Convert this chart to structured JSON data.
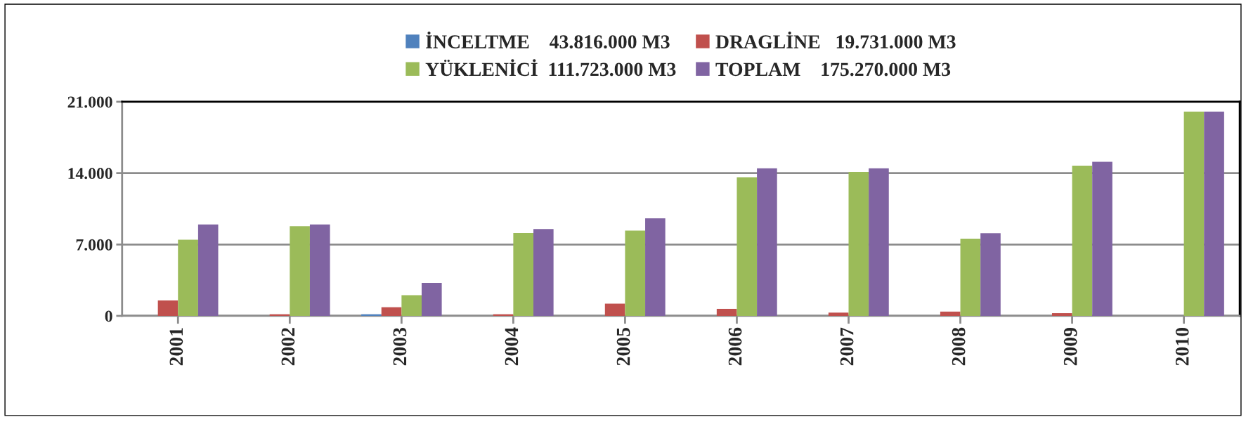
{
  "chart_data": {
    "type": "bar",
    "categories": [
      "2001",
      "2002",
      "2003",
      "2004",
      "2005",
      "2006",
      "2007",
      "2008",
      "2009",
      "2010"
    ],
    "series": [
      {
        "name": "İNCELTME    43.816.000 M3",
        "color": "#4f81bd",
        "values": [
          null,
          null,
          160,
          null,
          null,
          null,
          null,
          null,
          null,
          null
        ]
      },
      {
        "name": "DRAGLİNE   19.731.000 M3",
        "color": "#c0504d",
        "values": [
          1520,
          160,
          850,
          160,
          1200,
          690,
          320,
          420,
          270,
          null
        ]
      },
      {
        "name": "YÜKLENİCİ  111.723.000 M3",
        "color": "#9bbb59",
        "values": [
          7470,
          8800,
          2030,
          8130,
          8370,
          13600,
          14110,
          7580,
          14740,
          20030
        ]
      },
      {
        "name": "TOPLAM    175.270.000 M3",
        "color": "#8064a2",
        "values": [
          8960,
          8960,
          3230,
          8510,
          9570,
          14480,
          14480,
          8100,
          15110,
          20030
        ]
      }
    ],
    "ylim": [
      0,
      21000
    ],
    "yticks": [
      {
        "value": 0,
        "label": "0"
      },
      {
        "value": 7000,
        "label": "7.000"
      },
      {
        "value": 14000,
        "label": "14.000"
      },
      {
        "value": 21000,
        "label": "21.000"
      }
    ],
    "grid": "y",
    "legend": "top"
  }
}
